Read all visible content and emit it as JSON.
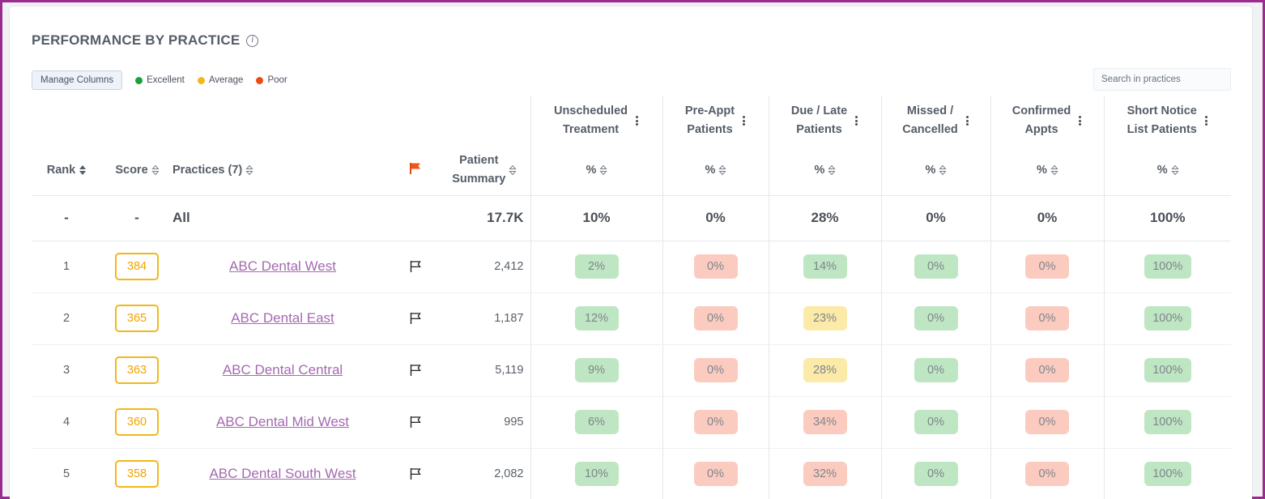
{
  "title": "PERFORMANCE BY PRACTICE",
  "info_icon": "info-icon",
  "toolbar": {
    "manage_columns": "Manage Columns",
    "legend": [
      {
        "label": "Excellent",
        "color": "#17a23a"
      },
      {
        "label": "Average",
        "color": "#f3b71b"
      },
      {
        "label": "Poor",
        "color": "#ee4b13"
      }
    ],
    "search_placeholder": "Search in practices"
  },
  "columns": {
    "rank": "Rank",
    "score": "Score",
    "practices": "Practices (7)",
    "patient_summary_l1": "Patient",
    "patient_summary_l2": "Summary",
    "groups": [
      {
        "l1": "Unscheduled",
        "l2": "Treatment",
        "sub": "%"
      },
      {
        "l1": "Pre-Appt",
        "l2": "Patients",
        "sub": "%"
      },
      {
        "l1": "Due / Late",
        "l2": "Patients",
        "sub": "%"
      },
      {
        "l1": "Missed /",
        "l2": "Cancelled",
        "sub": "%"
      },
      {
        "l1": "Confirmed",
        "l2": "Appts",
        "sub": "%"
      },
      {
        "l1": "Short Notice",
        "l2": "List Patients",
        "sub": "%"
      }
    ]
  },
  "all_row": {
    "rank": "-",
    "score": "-",
    "practice": "All",
    "patient_summary": "17.7K",
    "values": [
      "10%",
      "0%",
      "28%",
      "0%",
      "0%",
      "100%"
    ]
  },
  "rows": [
    {
      "rank": "1",
      "score": "384",
      "practice": "ABC Dental West",
      "patients": "2,412",
      "values": [
        "2%",
        "0%",
        "14%",
        "0%",
        "0%",
        "100%"
      ],
      "status": [
        "g",
        "r",
        "g",
        "g",
        "r",
        "g"
      ]
    },
    {
      "rank": "2",
      "score": "365",
      "practice": "ABC Dental East",
      "patients": "1,187",
      "values": [
        "12%",
        "0%",
        "23%",
        "0%",
        "0%",
        "100%"
      ],
      "status": [
        "g",
        "r",
        "y",
        "g",
        "r",
        "g"
      ]
    },
    {
      "rank": "3",
      "score": "363",
      "practice": "ABC Dental Central",
      "patients": "5,119",
      "values": [
        "9%",
        "0%",
        "28%",
        "0%",
        "0%",
        "100%"
      ],
      "status": [
        "g",
        "r",
        "y",
        "g",
        "r",
        "g"
      ]
    },
    {
      "rank": "4",
      "score": "360",
      "practice": "ABC Dental Mid West",
      "patients": "995",
      "values": [
        "6%",
        "0%",
        "34%",
        "0%",
        "0%",
        "100%"
      ],
      "status": [
        "g",
        "r",
        "r",
        "g",
        "r",
        "g"
      ]
    },
    {
      "rank": "5",
      "score": "358",
      "practice": "ABC Dental South West",
      "patients": "2,082",
      "values": [
        "10%",
        "0%",
        "32%",
        "0%",
        "0%",
        "100%"
      ],
      "status": [
        "g",
        "r",
        "r",
        "g",
        "r",
        "g"
      ]
    }
  ]
}
